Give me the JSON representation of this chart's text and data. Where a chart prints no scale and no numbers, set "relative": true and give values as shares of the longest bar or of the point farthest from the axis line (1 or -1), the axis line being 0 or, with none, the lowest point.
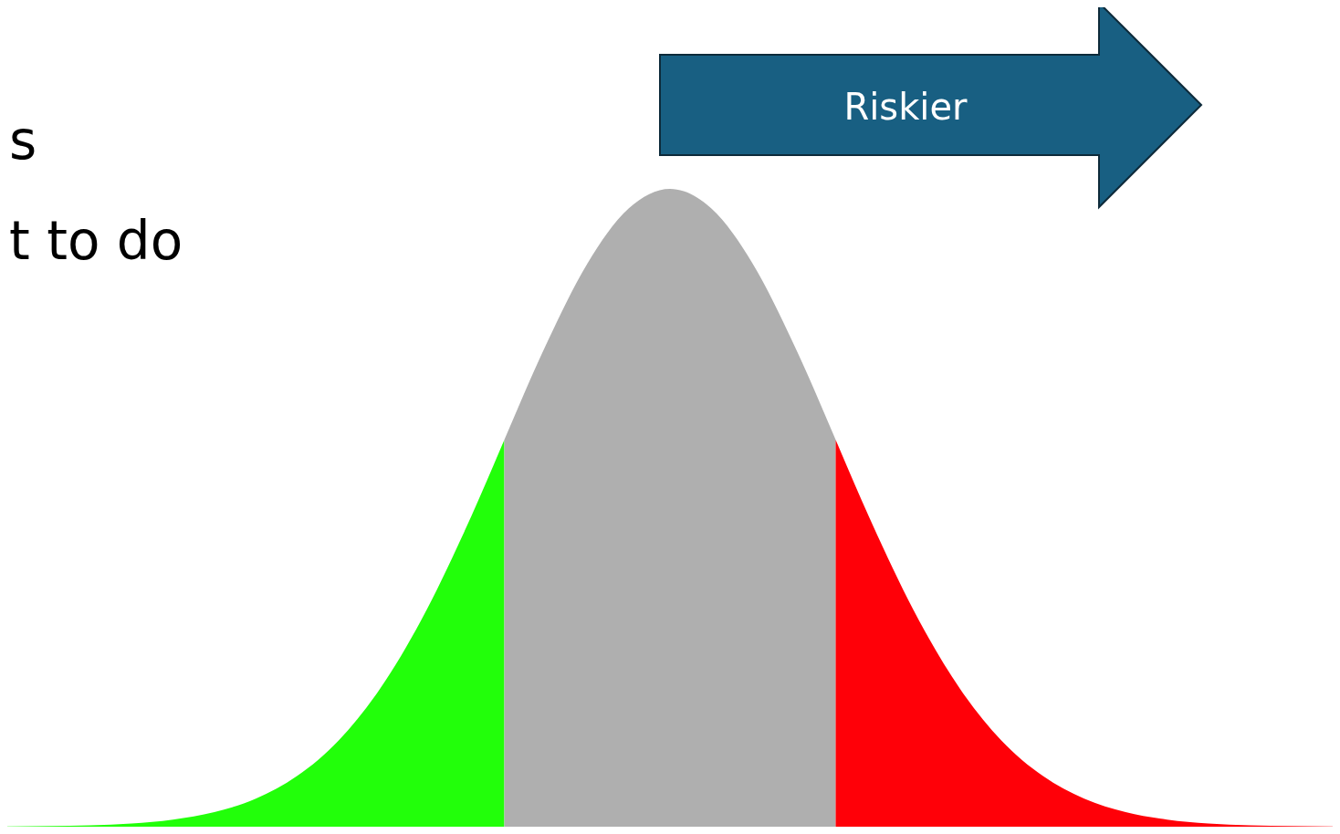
{
  "chart_data": {
    "type": "area",
    "relative": true,
    "categories": [
      null,
      null,
      null,
      null,
      null,
      null,
      null,
      null,
      null,
      null,
      null,
      null,
      null,
      null,
      null,
      null,
      null,
      null,
      null,
      null,
      null,
      null,
      null,
      null,
      null,
      null,
      null,
      null,
      null,
      null,
      null,
      null,
      null
    ],
    "series": [
      {
        "color": "#22ff0a",
        "values": [
          0.0003,
          0.0009,
          0.0022,
          0.0051,
          0.0111,
          0.0228,
          0.0439,
          0.0796,
          0.1353,
          0.2163,
          0.3247,
          0.4578,
          0.6065,
          null,
          null,
          null,
          null,
          null,
          null,
          null,
          null,
          null,
          null,
          null,
          null,
          null,
          null,
          null,
          null,
          null,
          null,
          null,
          null
        ]
      },
      {
        "color": "#afafaf",
        "values": [
          null,
          null,
          null,
          null,
          null,
          null,
          null,
          null,
          null,
          null,
          null,
          null,
          0.6065,
          0.7548,
          0.8825,
          0.9692,
          1,
          0.9692,
          0.8825,
          0.7548,
          0.6065,
          null,
          null,
          null,
          null,
          null,
          null,
          null,
          null,
          null,
          null,
          null,
          null
        ]
      },
      {
        "color": "#ff0008",
        "values": [
          null,
          null,
          null,
          null,
          null,
          null,
          null,
          null,
          null,
          null,
          null,
          null,
          null,
          null,
          null,
          null,
          null,
          null,
          null,
          null,
          0.6065,
          0.4578,
          0.3247,
          0.2163,
          0.1353,
          0.0796,
          0.0439,
          0.0228,
          0.0111,
          0.0051,
          0.0022,
          0.0009,
          0.0003
        ]
      }
    ],
    "annotations": [
      "s",
      "t to do",
      "Riskier"
    ]
  }
}
